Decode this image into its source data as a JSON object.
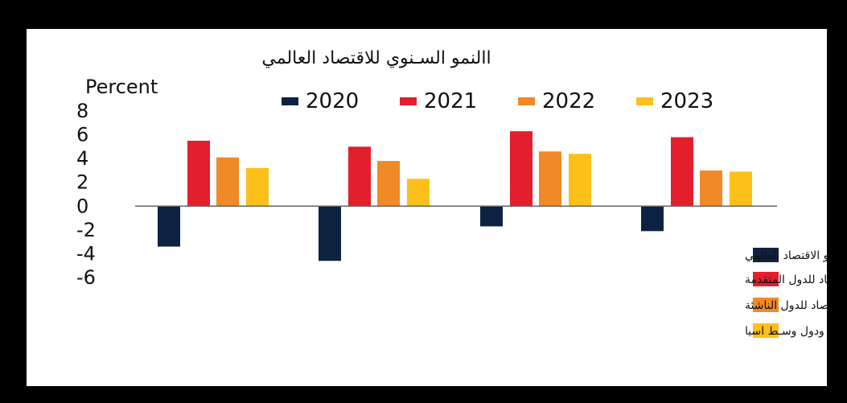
{
  "chart_data": {
    "type": "bar",
    "title": "االنمو السـنوي للاقتصاد العالمي",
    "ylabel": "Percent",
    "ylim": [
      -6,
      8
    ],
    "yticks": [
      "8",
      "6",
      "4",
      "2",
      "0",
      "-2",
      "-4",
      "-6"
    ],
    "grid": false,
    "series": [
      {
        "name": "2020",
        "color": "#0d2240",
        "values": [
          -3.4,
          -4.6,
          -1.7,
          -2.1
        ]
      },
      {
        "name": "2021",
        "color": "#e31e2d",
        "values": [
          5.5,
          5.0,
          6.3,
          5.8
        ]
      },
      {
        "name": "2022",
        "color": "#f08a26",
        "values": [
          4.1,
          3.8,
          4.6,
          3.0
        ]
      },
      {
        "name": "2023",
        "color": "#fdbf19",
        "values": [
          3.2,
          2.3,
          4.4,
          2.9
        ]
      }
    ],
    "indicator_legend": [
      {
        "label": "نمو الاقتصاد العالمي",
        "color": "#0d2240"
      },
      {
        "label": "نمو الاقتصاد للدول المتقدمة",
        "color": "#e31e2d"
      },
      {
        "label": "نمو الاقتصاد للدول الناشئة",
        "color": "#f08a26"
      },
      {
        "label": "نمو الاقتصاد لاوربا ودول وسـط اسيا",
        "color": "#fdbf19"
      }
    ]
  }
}
